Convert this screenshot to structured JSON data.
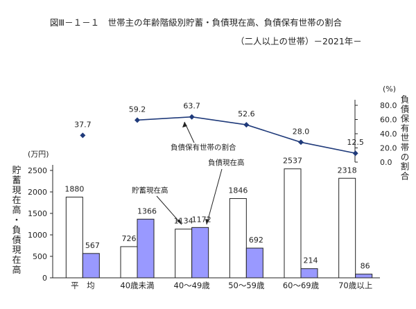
{
  "title_line1": "図Ⅲ－１－１　世帯主の年齢階級別貯蓄・負債現在高、負債保有世帯の割合",
  "title_line2": "（二人以上の世帯）－2021年－",
  "left_axis_title": "貯蓄現在高・負債現在高",
  "left_axis_unit": "(万円)",
  "right_axis_title": "負債保有世帯の割合",
  "right_axis_unit": "(%)",
  "annotations": {
    "savings": "貯蓄現在高",
    "debt": "負債現在高",
    "ratio": "負債保有世帯の割合"
  },
  "chart_data": {
    "type": "bar",
    "categories": [
      "平　均",
      "40歳未満",
      "40～49歳",
      "50～59歳",
      "60～69歳",
      "70歳以上"
    ],
    "series": [
      {
        "name": "貯蓄現在高",
        "values": [
          1880,
          726,
          1134,
          1846,
          2537,
          2318
        ],
        "color": "#ffffff"
      },
      {
        "name": "負債現在高",
        "values": [
          567,
          1366,
          1172,
          692,
          214,
          86
        ],
        "color": "#9999ff"
      }
    ],
    "left_ylim": [
      0,
      2600
    ],
    "left_yticks": [
      0,
      500,
      1000,
      1500,
      2000,
      2500
    ],
    "line": {
      "name": "負債保有世帯の割合",
      "values": [
        37.7,
        59.2,
        63.7,
        52.6,
        28.0,
        12.5
      ],
      "labels": [
        "37.7",
        "59.2",
        "63.7",
        "52.6",
        "28.0",
        "12.5"
      ],
      "color": "#1f3a7a",
      "connected_from_index": 1
    },
    "right_ylim": [
      0,
      80
    ],
    "right_yticks": [
      "0.0",
      "20.0",
      "40.0",
      "60.0",
      "80.0"
    ],
    "grid": false
  }
}
